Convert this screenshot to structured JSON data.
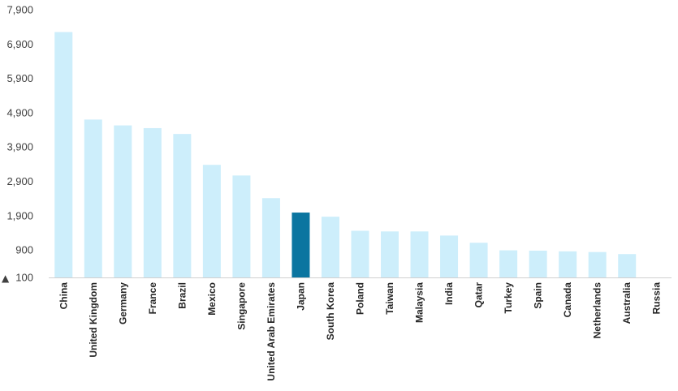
{
  "chart_data": {
    "type": "bar",
    "title": "",
    "xlabel": "",
    "ylabel": "",
    "ylim": [
      100,
      7900
    ],
    "yticks": [
      100,
      900,
      1900,
      2900,
      3900,
      4900,
      5900,
      6900,
      7900
    ],
    "ytick_labels": [
      "100",
      "900",
      "1,900",
      "2,900",
      "3,900",
      "4,900",
      "5,900",
      "6,900",
      "7,900"
    ],
    "baseline_marker": "▲",
    "grid": false,
    "legend": "none",
    "categories": [
      "China",
      "United Kingdom",
      "Germany",
      "France",
      "Brazil",
      "Mexico",
      "Singapore",
      "United Arab Emirates",
      "Japan",
      "South Korea",
      "Poland",
      "Taiwan",
      "Malaysia",
      "India",
      "Qatar",
      "Turkey",
      "Spain",
      "Canada",
      "Netherlands",
      "Australia",
      "Russia"
    ],
    "values": [
      7250,
      4700,
      4530,
      4450,
      4280,
      3380,
      3070,
      2410,
      1990,
      1870,
      1460,
      1440,
      1440,
      1320,
      1110,
      890,
      880,
      860,
      840,
      780,
      100
    ],
    "highlight_category": "Japan",
    "colors": {
      "bar": "#cdeefb",
      "highlight": "#0b75a0",
      "axis": "#d0d0d0",
      "text": "#404040"
    }
  }
}
